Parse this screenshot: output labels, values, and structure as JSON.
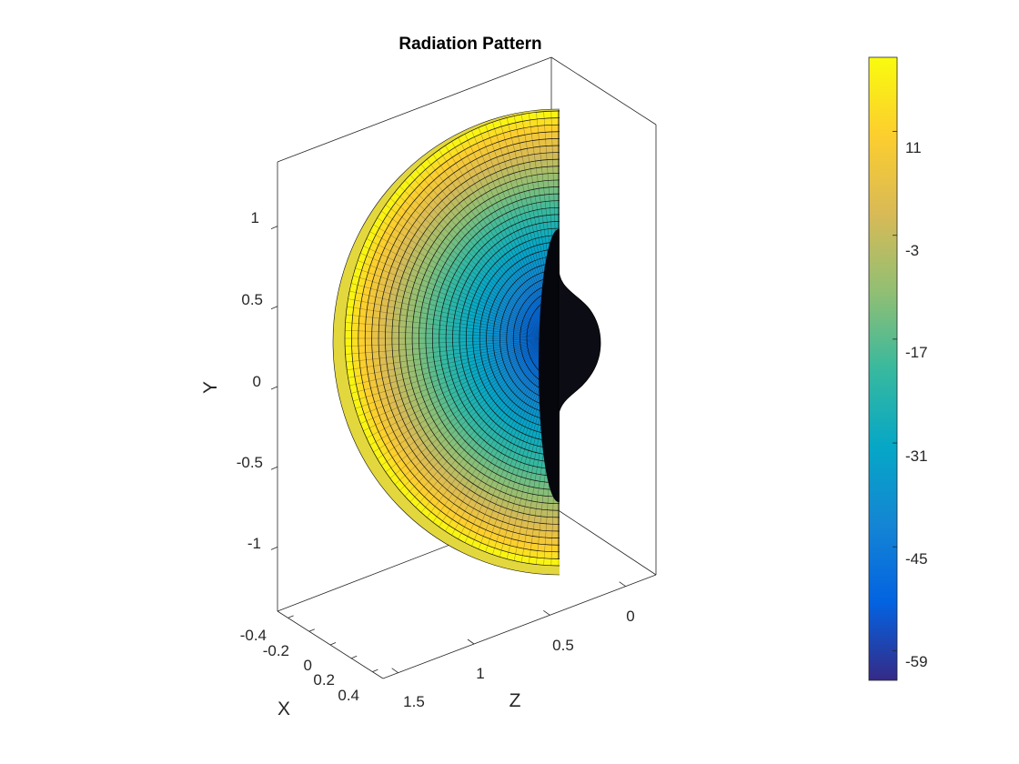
{
  "chart_data": {
    "type": "surface",
    "title": "Radiation Pattern",
    "xlabel": "X",
    "ylabel": "Y",
    "zlabel": "Z",
    "axes": {
      "x": {
        "ticks": [
          "-0.4",
          "-0.2",
          "0",
          "0.2",
          "0.4"
        ],
        "values": [
          -0.4,
          -0.2,
          0,
          0.2,
          0.4
        ],
        "lim": [
          -0.5,
          0.5
        ]
      },
      "y": {
        "ticks": [
          "-1",
          "-0.5",
          "0",
          "0.5",
          "1"
        ],
        "values": [
          -1,
          -0.5,
          0,
          0.5,
          1
        ],
        "lim": [
          -1.4,
          1.4
        ]
      },
      "z": {
        "ticks": [
          "0",
          "0.5",
          "1",
          "1.5"
        ],
        "values": [
          0,
          0.5,
          1,
          1.5
        ],
        "lim": [
          -0.2,
          1.6
        ]
      }
    },
    "box": true,
    "grid": false,
    "surface": {
      "shape": "half-disc radiation lobe in the Y-Z plane with a small bulge near the axis",
      "radius_max": 1.15,
      "bulge_radius": 0.16,
      "bulge_half_height": 0.45
    },
    "colorbar": {
      "colormap": "parula",
      "ticks": [
        "11",
        "-3",
        "-17",
        "-31",
        "-45",
        "-59"
      ],
      "values": [
        11,
        -3,
        -17,
        -31,
        -45,
        -59
      ],
      "range": [
        -63,
        21
      ],
      "colors": [
        "#352a87",
        "#0363e1",
        "#1485d4",
        "#06a7c6",
        "#38b99e",
        "#92bf73",
        "#d9ba56",
        "#fcce2e",
        "#f9fb0e"
      ]
    }
  }
}
